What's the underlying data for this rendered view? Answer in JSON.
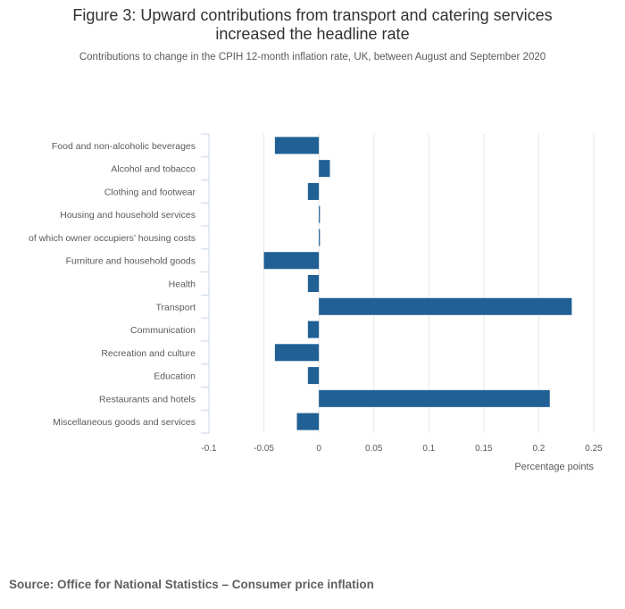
{
  "header": {
    "title_line1": "Figure 3: Upward contributions from transport and catering services",
    "title_line2": "increased the headline rate",
    "subtitle": "Contributions to change in the CPIH 12-month inflation rate, UK, between August and September 2020"
  },
  "footer": {
    "source": "Source: Office for National Statistics – Consumer price inflation"
  },
  "colors": {
    "bar": "#206095",
    "grid": "#e6e6e6",
    "axis": "#c8d6e5"
  },
  "chart_data": {
    "type": "bar",
    "orientation": "horizontal",
    "title": "Figure 3: Upward contributions from transport and catering services increased the headline rate",
    "subtitle": "Contributions to change in the CPIH 12-month inflation rate, UK, between August and September 2020",
    "xlabel": "Percentage points",
    "ylabel": "",
    "xlim": [
      -0.1,
      0.25
    ],
    "xticks": [
      -0.1,
      -0.05,
      0,
      0.05,
      0.1,
      0.15,
      0.2,
      0.25
    ],
    "xtick_labels": [
      "-0.1",
      "-0.05",
      "0",
      "0.05",
      "0.1",
      "0.15",
      "0.2",
      "0.25"
    ],
    "grid": true,
    "categories": [
      "Food and non-alcoholic beverages",
      "Alcohol and tobacco",
      "Clothing and footwear",
      "Housing and household services",
      "of which owner occupiers’ housing costs",
      "Furniture and household goods",
      "Health",
      "Transport",
      "Communication",
      "Recreation and culture",
      "Education",
      "Restaurants and hotels",
      "Miscellaneous goods and services"
    ],
    "values": [
      -0.04,
      0.01,
      -0.01,
      0.0,
      0.0,
      -0.05,
      -0.01,
      0.23,
      -0.01,
      -0.04,
      -0.01,
      0.21,
      -0.02
    ]
  }
}
